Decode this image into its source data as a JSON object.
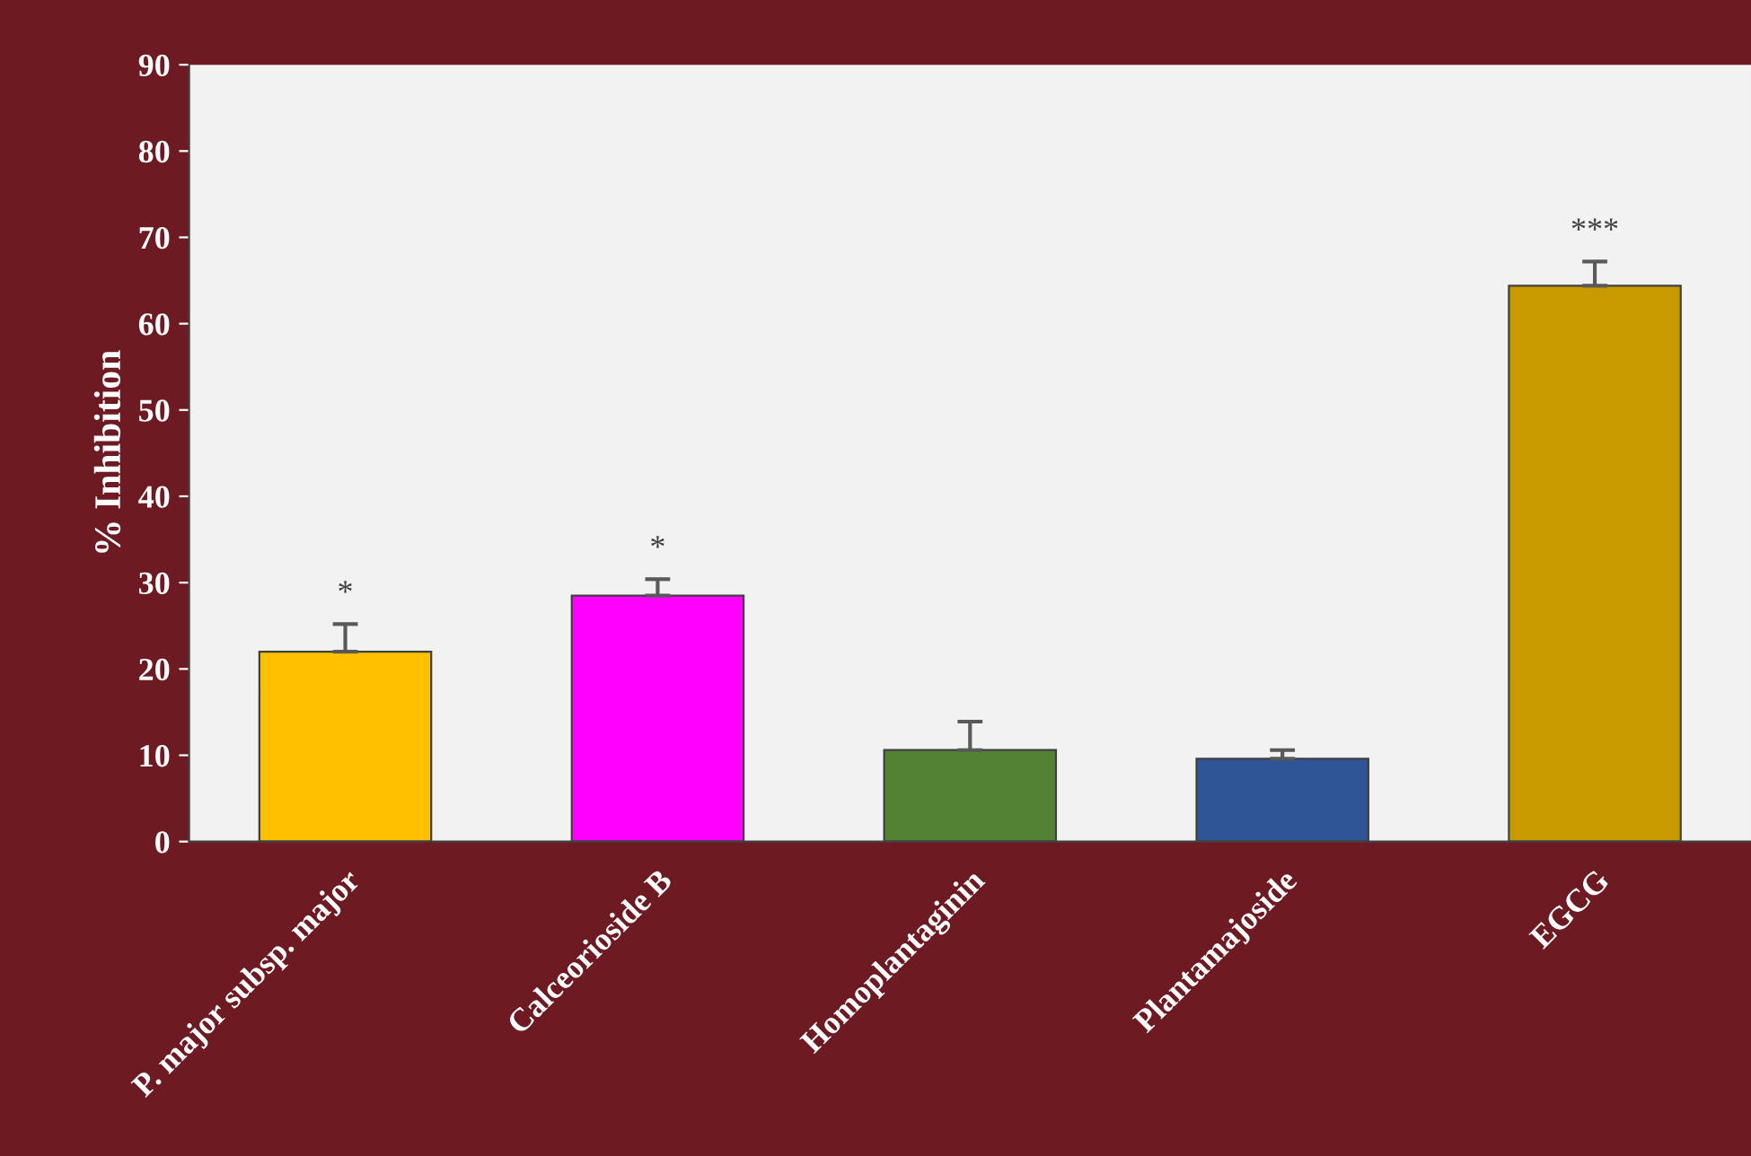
{
  "chart_data": {
    "type": "bar",
    "ylabel": "% Inhibition",
    "categories": [
      "P. major subsp. major",
      "Calceorioside B",
      "Homoplantaginin",
      "Plantamajoside",
      "EGCG"
    ],
    "values": [
      22.0,
      28.5,
      10.6,
      9.6,
      64.4
    ],
    "colors": [
      "#ffc000",
      "#ff00ff",
      "#548235",
      "#2f5597",
      "#c99a00"
    ],
    "errors": [
      [
        22.0,
        25.2
      ],
      [
        28.5,
        30.4
      ],
      [
        10.6,
        13.9
      ],
      [
        9.6,
        10.6
      ],
      [
        64.4,
        67.2
      ]
    ],
    "ylim": [
      0,
      90
    ],
    "yticks": [
      0,
      10,
      20,
      30,
      40,
      50,
      60,
      70,
      80,
      90
    ],
    "grid": false,
    "legend": false,
    "annotations": [
      {
        "text": "*",
        "x": "P. major subsp. major",
        "y": 25.2
      },
      {
        "text": "*",
        "x": "Calceorioside B",
        "y": 30.4
      },
      {
        "text": "***",
        "x": "EGCG",
        "y": 67.2
      }
    ]
  }
}
